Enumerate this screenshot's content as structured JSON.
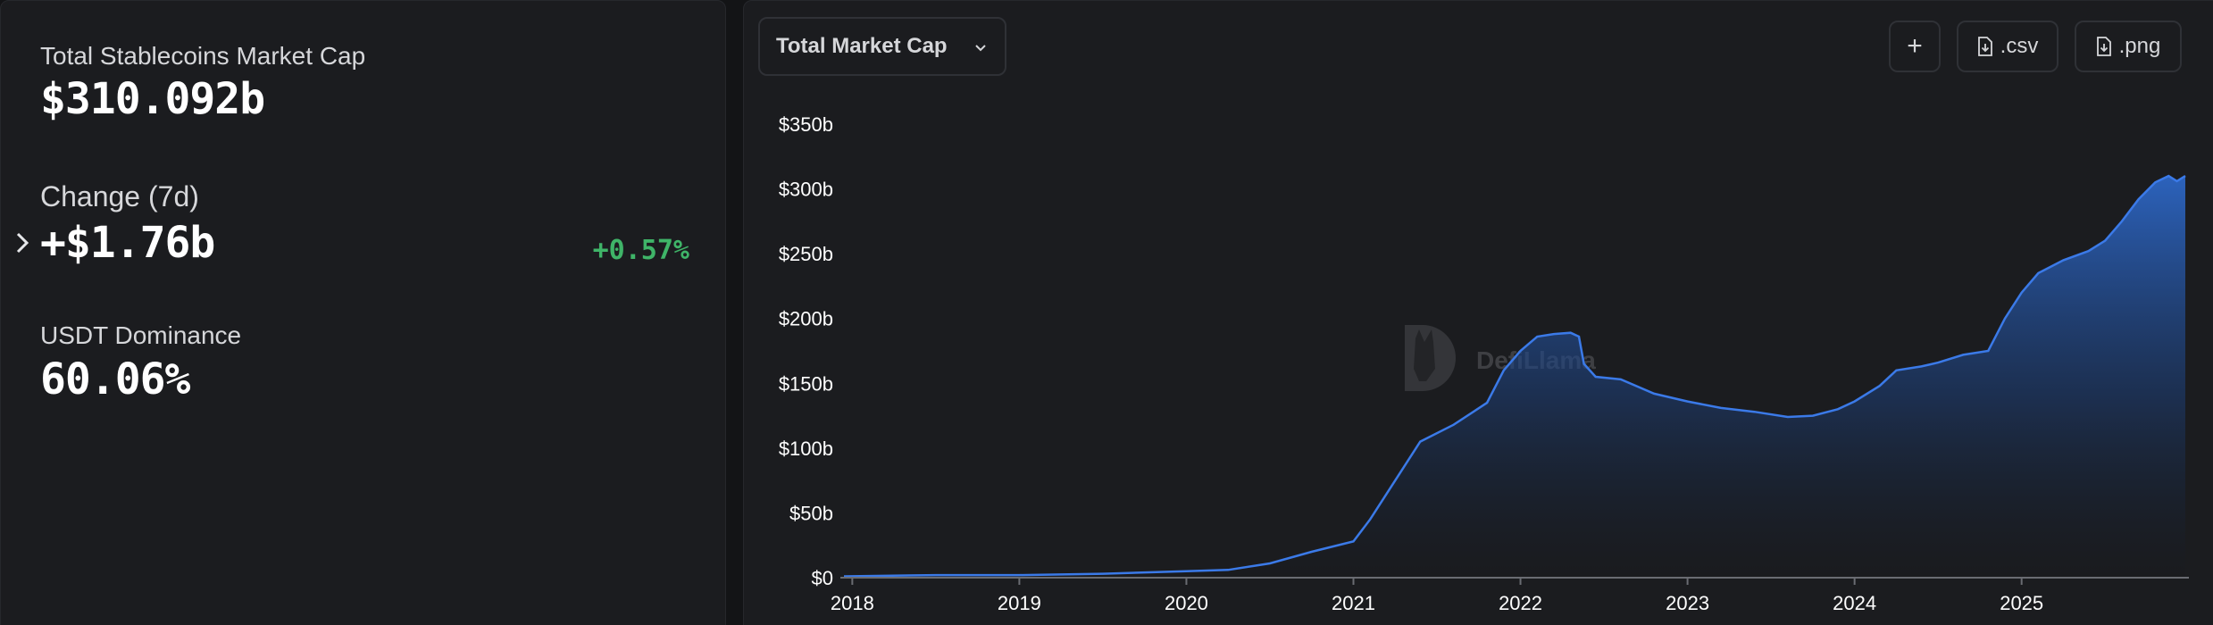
{
  "summary": {
    "total_label": "Total Stablecoins Market Cap",
    "total_value": "$310.092b",
    "change_label": "Change (7d)",
    "change_value": "+$1.76b",
    "change_pct": "+0.57%",
    "usdt_label": "USDT Dominance",
    "usdt_value": "60.06%"
  },
  "toolbar": {
    "metric_label": "Total Market Cap",
    "add_label": "+",
    "csv_label": ".csv",
    "png_label": ".png"
  },
  "watermark": {
    "text": "DefiLlama"
  },
  "colors": {
    "accent": "#2f6fd8",
    "positive": "#3fb468",
    "panel": "#1b1c1f"
  },
  "chart_data": {
    "type": "area",
    "title": "Total Market Cap",
    "xlabel": "",
    "ylabel": "",
    "ylim": [
      0,
      350
    ],
    "y_ticks": [
      0,
      50,
      100,
      150,
      200,
      250,
      300,
      350
    ],
    "y_tick_labels": [
      "$0",
      "$50b",
      "$100b",
      "$150b",
      "$200b",
      "$250b",
      "$300b",
      "$350b"
    ],
    "x_range": [
      2017.95,
      2025.98
    ],
    "x_ticks": [
      2018,
      2019,
      2020,
      2021,
      2022,
      2023,
      2024,
      2025
    ],
    "x_tick_labels": [
      "2018",
      "2019",
      "2020",
      "2021",
      "2022",
      "2023",
      "2024",
      "2025"
    ],
    "series": [
      {
        "name": "Total Market Cap ($b)",
        "x": [
          2017.95,
          2018.5,
          2019.0,
          2019.5,
          2020.0,
          2020.25,
          2020.5,
          2020.75,
          2021.0,
          2021.1,
          2021.25,
          2021.4,
          2021.6,
          2021.8,
          2021.9,
          2022.0,
          2022.1,
          2022.2,
          2022.3,
          2022.35,
          2022.38,
          2022.45,
          2022.6,
          2022.8,
          2023.0,
          2023.2,
          2023.4,
          2023.6,
          2023.75,
          2023.9,
          2024.0,
          2024.15,
          2024.25,
          2024.4,
          2024.5,
          2024.65,
          2024.8,
          2024.9,
          2025.0,
          2025.1,
          2025.25,
          2025.4,
          2025.5,
          2025.6,
          2025.7,
          2025.8,
          2025.88,
          2025.93,
          2025.98
        ],
        "y": [
          1,
          2,
          2,
          3,
          5,
          6,
          11,
          20,
          28,
          45,
          75,
          105,
          118,
          135,
          160,
          175,
          186,
          188,
          189,
          186,
          165,
          155,
          153,
          142,
          136,
          131,
          128,
          124,
          125,
          130,
          136,
          148,
          160,
          163,
          166,
          172,
          175,
          200,
          220,
          235,
          245,
          252,
          260,
          275,
          292,
          305,
          310,
          306,
          310
        ]
      }
    ]
  }
}
